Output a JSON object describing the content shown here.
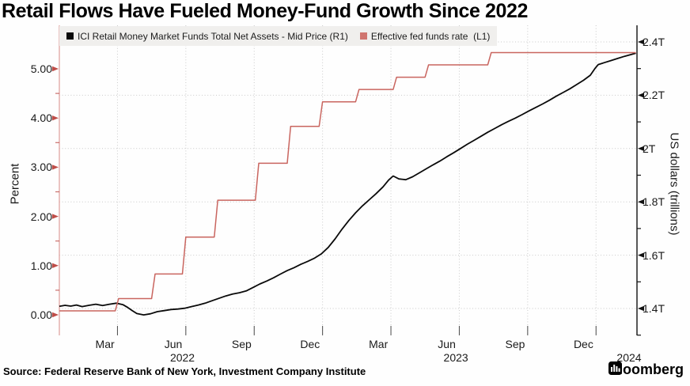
{
  "title": "Retail Flows Have Fueled Money-Fund Growth Since 2022",
  "legend": {
    "items": [
      {
        "label": "ICI Retail Money Market Funds Total Net Assets - Mid Price (R1)",
        "color": "#0a0a0a"
      },
      {
        "label": "Effective fed funds rate  (L1)",
        "color": "#d0756f"
      }
    ]
  },
  "source_line": "Source: Federal Reserve Bank of New York, Investment Company Institute",
  "brand": "Bloomberg",
  "colors": {
    "series_black": "#0a0a0a",
    "series_red": "#c9655f",
    "left_spine": "#e3aca8",
    "left_tick": "#bf4d48",
    "right_spine": "#111111",
    "right_tick": "#111111",
    "grid": "#c9c9c9",
    "x_tick": "#4a4a4a",
    "legend_bg": "#f0efed"
  },
  "chart_data": {
    "type": "line",
    "x_unit": "months since 2022-01-01",
    "left_axis": {
      "title": "Percent",
      "range": [
        0,
        5.33
      ],
      "majors": [
        {
          "v": 0,
          "label": "0.00"
        },
        {
          "v": 1,
          "label": "1.00"
        },
        {
          "v": 2,
          "label": "2.00"
        },
        {
          "v": 3,
          "label": "3.00"
        },
        {
          "v": 4,
          "label": "4.00"
        },
        {
          "v": 5,
          "label": "5.00"
        }
      ],
      "minors": [
        0.5,
        1.5,
        2.5,
        3.5,
        4.5
      ]
    },
    "right_axis": {
      "title": "US dollars (trillions)",
      "range": [
        1.4,
        2.4
      ],
      "majors": [
        {
          "v": 1.4,
          "label": "1.4T"
        },
        {
          "v": 1.6,
          "label": "1.6T"
        },
        {
          "v": 1.8,
          "label": "1.8T"
        },
        {
          "v": 2.0,
          "label": "2T"
        },
        {
          "v": 2.2,
          "label": "2.2T"
        },
        {
          "v": 2.4,
          "label": "2.4T"
        }
      ],
      "minors": [
        1.3,
        1.5,
        1.7,
        1.9,
        2.1,
        2.3
      ]
    },
    "x_axis": {
      "ticks": [
        {
          "m": 2,
          "label": "Mar"
        },
        {
          "m": 5,
          "label": "Jun"
        },
        {
          "m": 8,
          "label": "Sep"
        },
        {
          "m": 11,
          "label": "Dec"
        },
        {
          "m": 14,
          "label": "Mar"
        },
        {
          "m": 17,
          "label": "Jun"
        },
        {
          "m": 20,
          "label": "Sep"
        },
        {
          "m": 23,
          "label": "Dec"
        }
      ],
      "years": [
        {
          "m": 5.4,
          "label": "2022"
        },
        {
          "m": 17.4,
          "label": "2023"
        },
        {
          "m": 25.0,
          "label": "2024"
        }
      ]
    },
    "series": [
      {
        "name": "ICI Retail Money Market Funds Total Net Assets - Mid Price",
        "axis": "R1",
        "unit": "USD trillions",
        "style": "line",
        "points": [
          [
            0,
            1.408
          ],
          [
            0.25,
            1.412
          ],
          [
            0.5,
            1.409
          ],
          [
            0.75,
            1.413
          ],
          [
            1,
            1.407
          ],
          [
            1.3,
            1.412
          ],
          [
            1.6,
            1.416
          ],
          [
            1.9,
            1.411
          ],
          [
            2.2,
            1.416
          ],
          [
            2.5,
            1.42
          ],
          [
            2.8,
            1.414
          ],
          [
            3,
            1.404
          ],
          [
            3.2,
            1.392
          ],
          [
            3.4,
            1.381
          ],
          [
            3.7,
            1.376
          ],
          [
            4,
            1.38
          ],
          [
            4.3,
            1.388
          ],
          [
            4.6,
            1.392
          ],
          [
            4.9,
            1.396
          ],
          [
            5.2,
            1.398
          ],
          [
            5.5,
            1.401
          ],
          [
            5.8,
            1.407
          ],
          [
            6.1,
            1.413
          ],
          [
            6.4,
            1.42
          ],
          [
            6.7,
            1.429
          ],
          [
            7,
            1.438
          ],
          [
            7.3,
            1.447
          ],
          [
            7.6,
            1.454
          ],
          [
            7.9,
            1.459
          ],
          [
            8.2,
            1.466
          ],
          [
            8.5,
            1.479
          ],
          [
            8.8,
            1.492
          ],
          [
            9.1,
            1.503
          ],
          [
            9.4,
            1.515
          ],
          [
            9.7,
            1.529
          ],
          [
            10,
            1.542
          ],
          [
            10.3,
            1.553
          ],
          [
            10.6,
            1.566
          ],
          [
            10.9,
            1.577
          ],
          [
            11.2,
            1.589
          ],
          [
            11.5,
            1.605
          ],
          [
            11.8,
            1.629
          ],
          [
            12.1,
            1.661
          ],
          [
            12.4,
            1.697
          ],
          [
            12.7,
            1.73
          ],
          [
            13,
            1.759
          ],
          [
            13.3,
            1.785
          ],
          [
            13.6,
            1.808
          ],
          [
            13.9,
            1.831
          ],
          [
            14.2,
            1.856
          ],
          [
            14.45,
            1.882
          ],
          [
            14.65,
            1.897
          ],
          [
            14.9,
            1.886
          ],
          [
            15.2,
            1.883
          ],
          [
            15.5,
            1.894
          ],
          [
            15.8,
            1.909
          ],
          [
            16.1,
            1.924
          ],
          [
            16.4,
            1.939
          ],
          [
            16.7,
            1.953
          ],
          [
            17,
            1.969
          ],
          [
            17.3,
            1.984
          ],
          [
            17.6,
            2.0
          ],
          [
            17.9,
            2.016
          ],
          [
            18.2,
            2.031
          ],
          [
            18.5,
            2.046
          ],
          [
            18.8,
            2.061
          ],
          [
            19.1,
            2.075
          ],
          [
            19.4,
            2.089
          ],
          [
            19.7,
            2.102
          ],
          [
            20,
            2.114
          ],
          [
            20.3,
            2.127
          ],
          [
            20.6,
            2.141
          ],
          [
            20.9,
            2.154
          ],
          [
            21.2,
            2.167
          ],
          [
            21.5,
            2.181
          ],
          [
            21.8,
            2.196
          ],
          [
            22.1,
            2.21
          ],
          [
            22.4,
            2.224
          ],
          [
            22.7,
            2.24
          ],
          [
            23,
            2.256
          ],
          [
            23.3,
            2.275
          ],
          [
            23.5,
            2.3
          ],
          [
            23.65,
            2.315
          ],
          [
            23.9,
            2.322
          ],
          [
            24.2,
            2.33
          ],
          [
            24.5,
            2.338
          ],
          [
            24.8,
            2.346
          ],
          [
            25.05,
            2.352
          ],
          [
            25.3,
            2.358
          ]
        ]
      },
      {
        "name": "Effective fed funds rate",
        "axis": "L1",
        "unit": "percent",
        "style": "step-line",
        "points": [
          [
            0,
            0.08
          ],
          [
            2.45,
            0.08
          ],
          [
            2.6,
            0.33
          ],
          [
            4.05,
            0.33
          ],
          [
            4.2,
            0.83
          ],
          [
            5.4,
            0.83
          ],
          [
            5.55,
            1.58
          ],
          [
            6.8,
            1.58
          ],
          [
            6.95,
            2.33
          ],
          [
            8.6,
            2.33
          ],
          [
            8.75,
            3.08
          ],
          [
            10,
            3.08
          ],
          [
            10.15,
            3.83
          ],
          [
            11.4,
            3.83
          ],
          [
            11.55,
            4.33
          ],
          [
            13,
            4.33
          ],
          [
            13.15,
            4.58
          ],
          [
            14.65,
            4.58
          ],
          [
            14.8,
            4.83
          ],
          [
            16.05,
            4.83
          ],
          [
            16.2,
            5.08
          ],
          [
            18.8,
            5.08
          ],
          [
            18.95,
            5.33
          ],
          [
            25.3,
            5.33
          ]
        ]
      }
    ]
  }
}
